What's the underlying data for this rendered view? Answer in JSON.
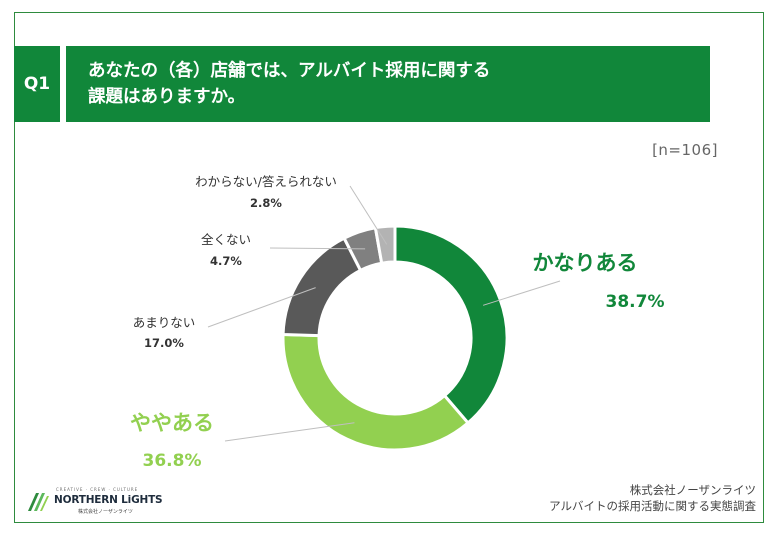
{
  "header": {
    "badge": "Q1",
    "question_line1": "あなたの（各）店舗では、アルバイト採用に関する",
    "question_line2": "課題はありますか。"
  },
  "sample_size": "[n=106]",
  "chart_data": {
    "type": "pie",
    "variant": "donut",
    "categories": [
      "かなりある",
      "ややある",
      "あまりない",
      "全くない",
      "わからない/答えられない"
    ],
    "values": [
      38.7,
      36.8,
      17.0,
      4.7,
      2.8
    ],
    "value_labels": [
      "38.7%",
      "36.8%",
      "17.0%",
      "4.7%",
      "2.8%"
    ],
    "colors": [
      "#11873a",
      "#92d050",
      "#595959",
      "#808080",
      "#b3b3b3"
    ],
    "label_colors": [
      "#11873a",
      "#92d050",
      "#333333",
      "#333333",
      "#333333"
    ],
    "start": "12 o'clock, clockwise"
  },
  "footer": {
    "source_line1": "株式会社ノーザンライツ",
    "source_line2": "アルバイトの採用活動に関する実態調査"
  },
  "logo": {
    "tagline": "CREATIVE · CREW · CULTURE",
    "name": "NORTHERN LiGHTS",
    "sub": "株式会社ノーザンライツ",
    "icon": "northern-lights-logo-icon"
  }
}
